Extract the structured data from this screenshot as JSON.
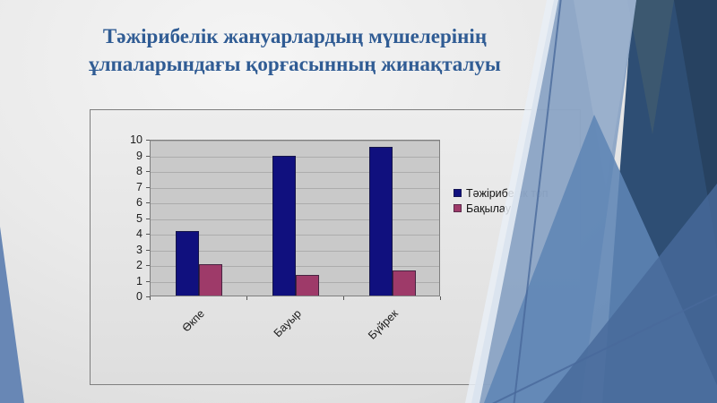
{
  "slide": {
    "title_line1": "Тәжірибелік жануарлардың мүшелерінің",
    "title_line2": "ұлпаларындағы қорғасынның жинақталуы"
  },
  "chart_data": {
    "type": "bar",
    "title": "",
    "xlabel": "",
    "ylabel": "",
    "categories": [
      "Өкпе",
      "Бауыр",
      "Бүйрек"
    ],
    "series": [
      {
        "name": "Тәжірибелік топ",
        "values": [
          4.1,
          8.9,
          9.5
        ],
        "color": "#10107E"
      },
      {
        "name": "Бақылау",
        "values": [
          2.0,
          1.3,
          1.6
        ],
        "color": "#9E3A69"
      }
    ],
    "ylim": [
      0,
      10
    ],
    "ytick_step": 1,
    "grid": true,
    "legend_position": "right",
    "plot_bg": "#C9C9C9",
    "gridline_color": "#ACACAC"
  },
  "colors": {
    "title_text": "#305C94",
    "deco_light_blue": "#8CA5C5",
    "deco_medium_blue": "#5F85B5",
    "deco_navy": "#2E4E74",
    "deco_teal": "#3E5A70",
    "corner_triangle": "#6887B5"
  }
}
